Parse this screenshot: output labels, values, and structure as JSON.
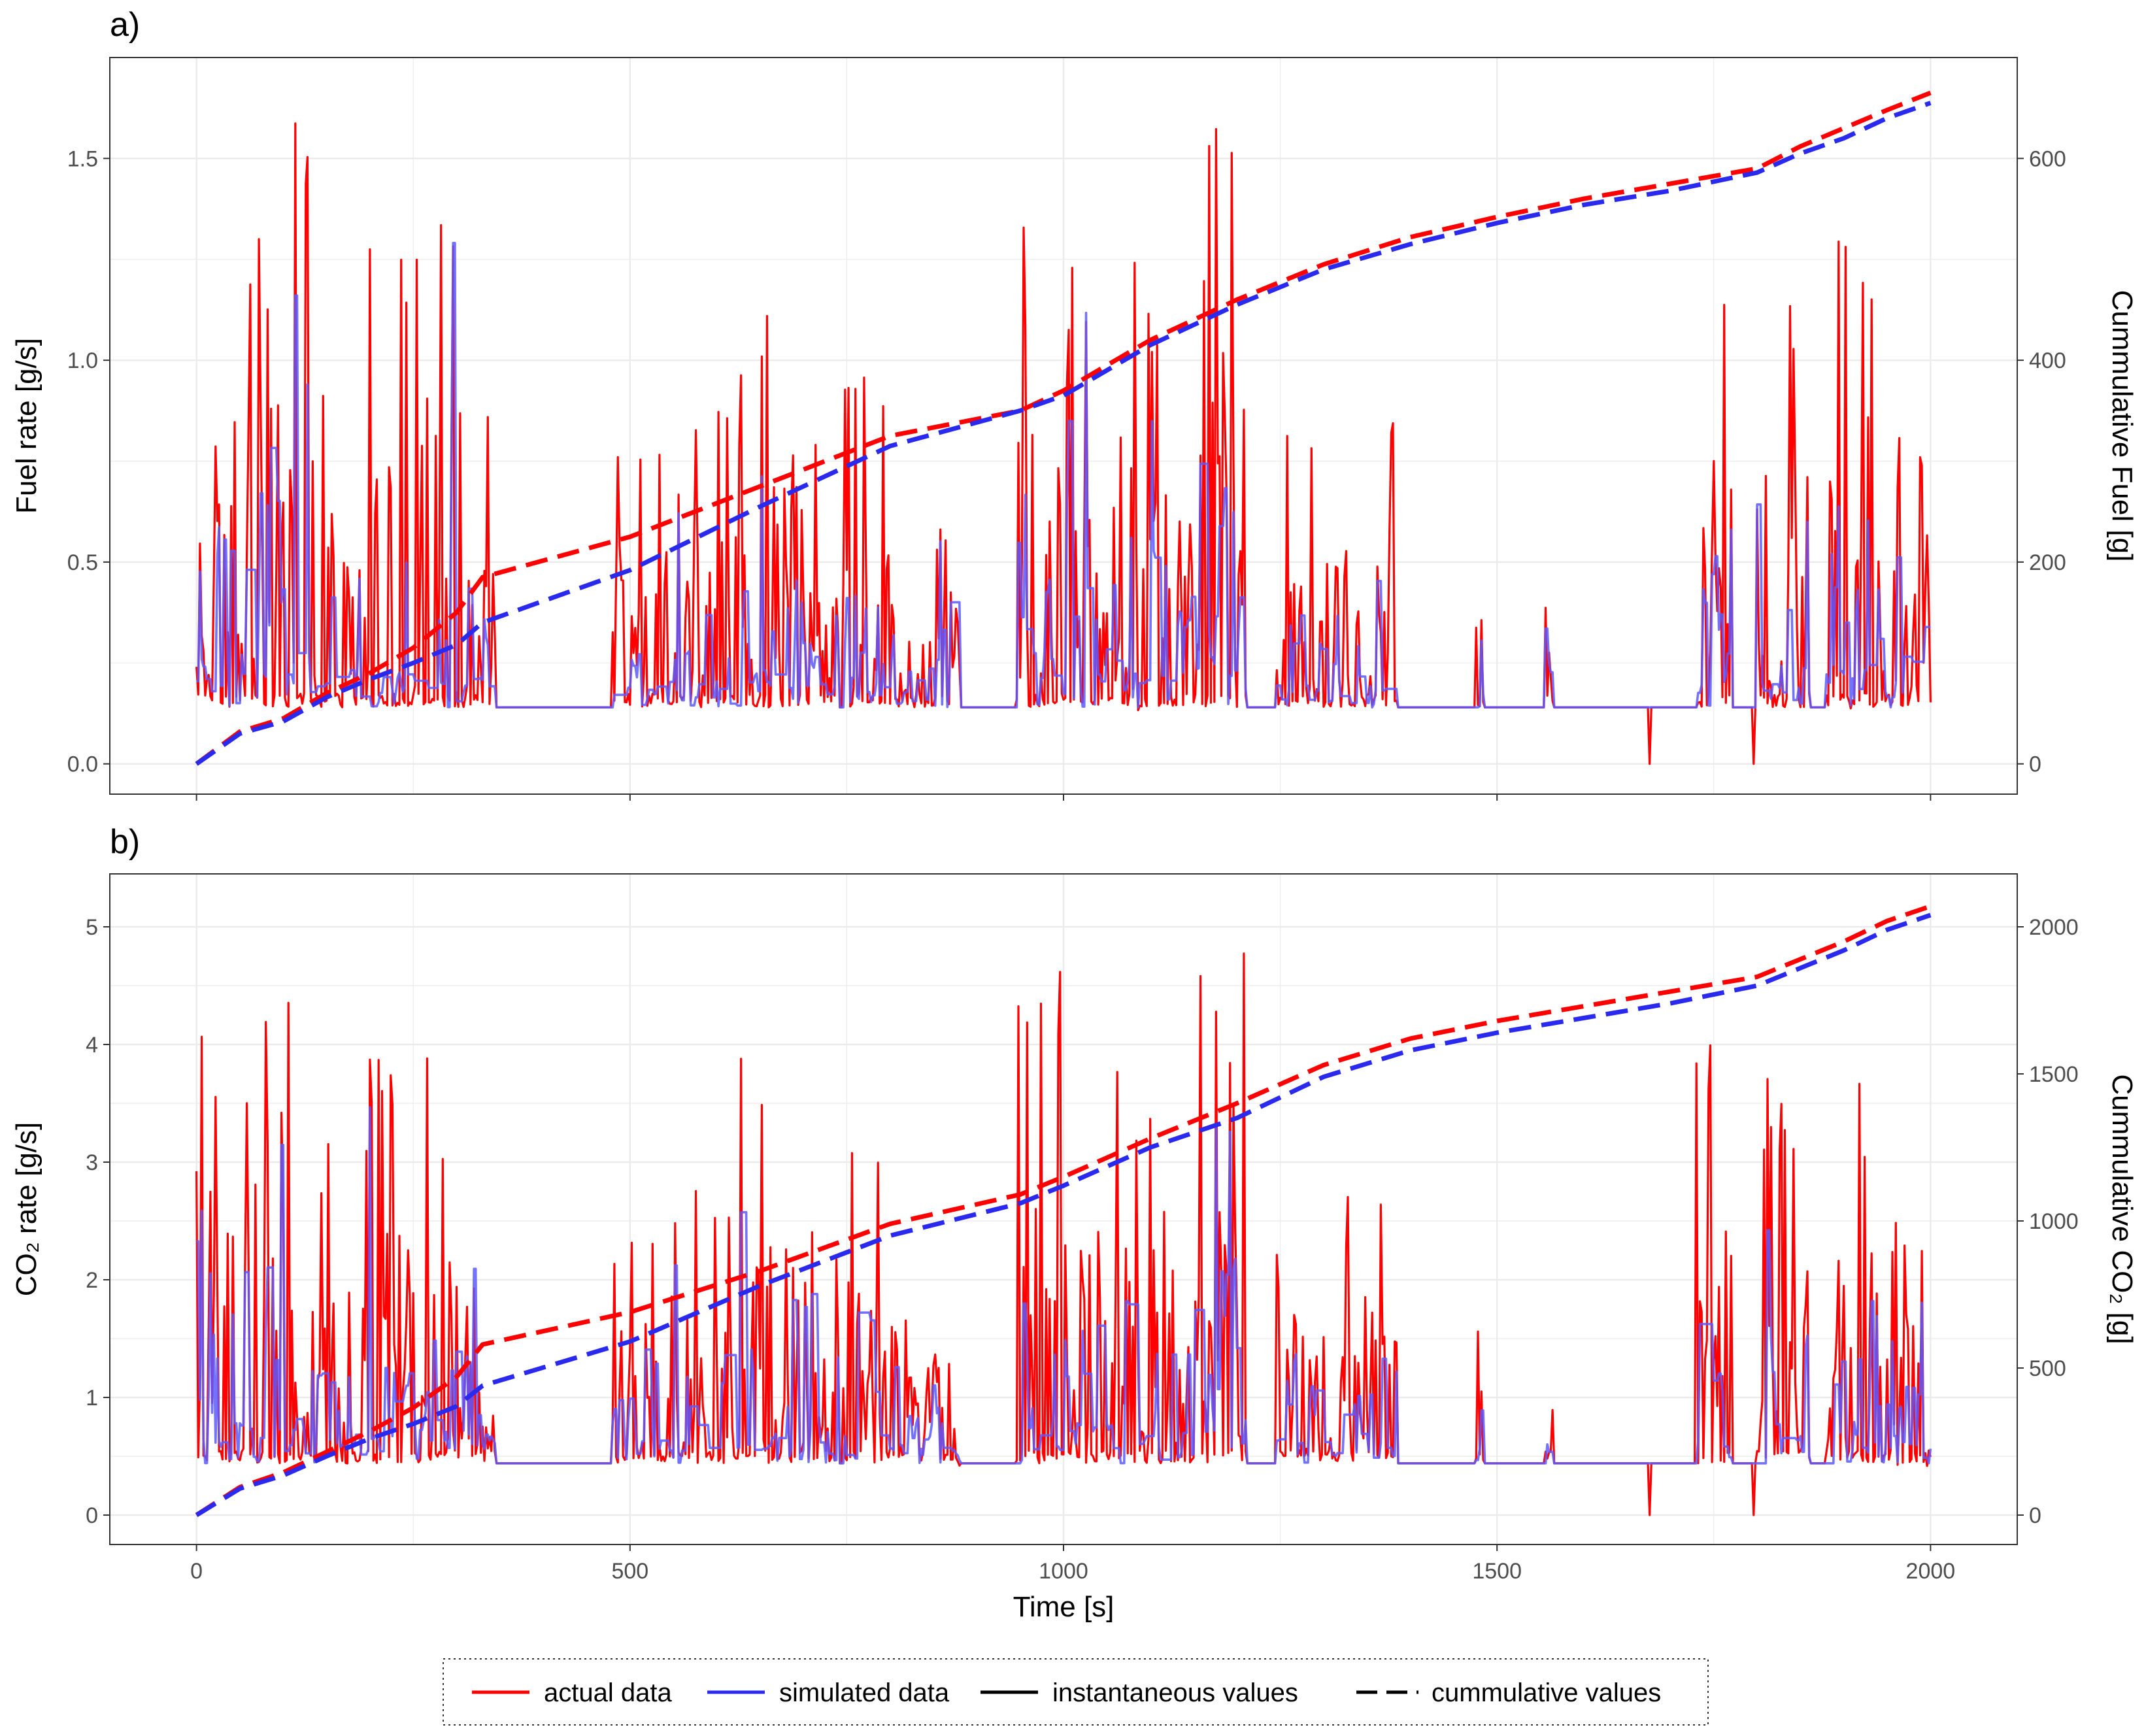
{
  "colors": {
    "actual": "#ff0000",
    "simulated": "#5a5aff",
    "simulated_cumulative": "#2a2aee",
    "overlap": "#7a22cc",
    "grid": "#ebebeb",
    "text": "#4d4d4d"
  },
  "chart_data": [
    {
      "type": "line",
      "panel": "a)",
      "xlabel": "",
      "ylabel": "Fuel rate [g/s]",
      "y2label": "Cummulative Fuel [g]",
      "xlim": [
        -100,
        2100
      ],
      "ylim": [
        -0.075,
        1.75
      ],
      "y2lim": [
        -30,
        700
      ],
      "x_ticks": [
        "0",
        "500",
        "1000",
        "1500",
        "2000"
      ],
      "y_ticks": [
        "0.0",
        "0.5",
        "1.0",
        "1.5"
      ],
      "y2_ticks": [
        "0",
        "200",
        "400",
        "600"
      ],
      "base_level": 0.14,
      "bursts": [
        [
          0,
          80,
          1.32
        ],
        [
          80,
          130,
          1.55
        ],
        [
          130,
          200,
          1.0
        ],
        [
          200,
          260,
          1.3
        ],
        [
          260,
          300,
          1.4
        ],
        [
          300,
          345,
          0.97
        ],
        [
          480,
          560,
          0.8
        ],
        [
          560,
          620,
          0.9
        ],
        [
          620,
          680,
          1.15
        ],
        [
          680,
          740,
          0.85
        ],
        [
          745,
          810,
          1.0
        ],
        [
          810,
          880,
          0.6
        ],
        [
          945,
          1005,
          1.53
        ],
        [
          1005,
          1090,
          1.25
        ],
        [
          1090,
          1150,
          1.2
        ],
        [
          1150,
          1210,
          1.6
        ],
        [
          1245,
          1300,
          0.85
        ],
        [
          1300,
          1345,
          0.8
        ],
        [
          1345,
          1385,
          0.9
        ],
        [
          1475,
          1485,
          0.55
        ],
        [
          1555,
          1565,
          0.69
        ],
        [
          1730,
          1770,
          1.33
        ],
        [
          1800,
          1860,
          1.17
        ],
        [
          1880,
          1940,
          1.3
        ],
        [
          1940,
          2000,
          0.83
        ]
      ],
      "cumulative": {
        "x": [
          0,
          50,
          100,
          150,
          200,
          250,
          300,
          330,
          500,
          650,
          800,
          950,
          1000,
          1100,
          1200,
          1300,
          1400,
          1500,
          1600,
          1700,
          1800,
          1850,
          1900,
          1950,
          2000
        ],
        "actual": [
          0,
          32,
          45,
          70,
          90,
          115,
          150,
          185,
          225,
          275,
          325,
          350,
          370,
          420,
          460,
          495,
          522,
          542,
          560,
          575,
          590,
          612,
          630,
          648,
          665
        ],
        "simulated": [
          0,
          30,
          42,
          66,
          84,
          100,
          118,
          140,
          192,
          255,
          315,
          350,
          365,
          415,
          455,
          490,
          515,
          536,
          554,
          568,
          586,
          605,
          620,
          640,
          655
        ]
      }
    },
    {
      "type": "line",
      "panel": "b)",
      "xlabel": "Time [s]",
      "ylabel": "CO₂ rate [g/s]",
      "y2label": "Cummulative CO₂ [g]",
      "xlim": [
        -100,
        2100
      ],
      "ylim": [
        -0.25,
        5.45
      ],
      "y2lim": [
        -100,
        2180
      ],
      "x_ticks": [
        "0",
        "500",
        "1000",
        "1500",
        "2000"
      ],
      "y_ticks": [
        "0",
        "1",
        "2",
        "3",
        "4",
        "5"
      ],
      "y2_ticks": [
        "0",
        "500",
        "1000",
        "1500",
        "2000"
      ],
      "base_level": 0.44,
      "bursts": [
        [
          0,
          80,
          4.1
        ],
        [
          80,
          130,
          4.8
        ],
        [
          130,
          200,
          3.1
        ],
        [
          200,
          260,
          4.0
        ],
        [
          260,
          300,
          4.3
        ],
        [
          300,
          345,
          3.0
        ],
        [
          480,
          560,
          2.5
        ],
        [
          560,
          620,
          2.8
        ],
        [
          620,
          680,
          3.55
        ],
        [
          680,
          740,
          2.6
        ],
        [
          745,
          810,
          3.1
        ],
        [
          810,
          880,
          1.9
        ],
        [
          945,
          1005,
          4.75
        ],
        [
          1005,
          1090,
          3.9
        ],
        [
          1090,
          1150,
          3.7
        ],
        [
          1150,
          1210,
          4.9
        ],
        [
          1245,
          1300,
          2.6
        ],
        [
          1300,
          1345,
          2.5
        ],
        [
          1345,
          1385,
          2.8
        ],
        [
          1475,
          1485,
          1.7
        ],
        [
          1555,
          1565,
          2.15
        ],
        [
          1730,
          1770,
          4.1
        ],
        [
          1800,
          1860,
          3.6
        ],
        [
          1880,
          1940,
          4.0
        ],
        [
          1940,
          2000,
          2.6
        ]
      ],
      "cumulative": {
        "x": [
          0,
          50,
          100,
          150,
          200,
          250,
          300,
          330,
          500,
          650,
          800,
          950,
          1000,
          1100,
          1200,
          1300,
          1400,
          1500,
          1600,
          1700,
          1800,
          1850,
          1900,
          1950,
          2000
        ],
        "actual": [
          0,
          95,
          145,
          215,
          285,
          365,
          470,
          580,
          690,
          830,
          990,
          1090,
          1150,
          1280,
          1400,
          1530,
          1620,
          1680,
          1730,
          1780,
          1830,
          1890,
          1950,
          2020,
          2070
        ],
        "simulated": [
          0,
          90,
          135,
          200,
          260,
          310,
          370,
          440,
          590,
          780,
          950,
          1060,
          1120,
          1250,
          1350,
          1490,
          1580,
          1640,
          1690,
          1740,
          1800,
          1860,
          1920,
          1990,
          2040
        ]
      }
    }
  ],
  "legend": {
    "items": [
      {
        "label": "actual data",
        "style": "actual"
      },
      {
        "label": "simulated data",
        "style": "simulated"
      },
      {
        "label": "instantaneous values",
        "style": "solid-black"
      },
      {
        "label": "cummulative values",
        "style": "dashed-black"
      }
    ]
  }
}
